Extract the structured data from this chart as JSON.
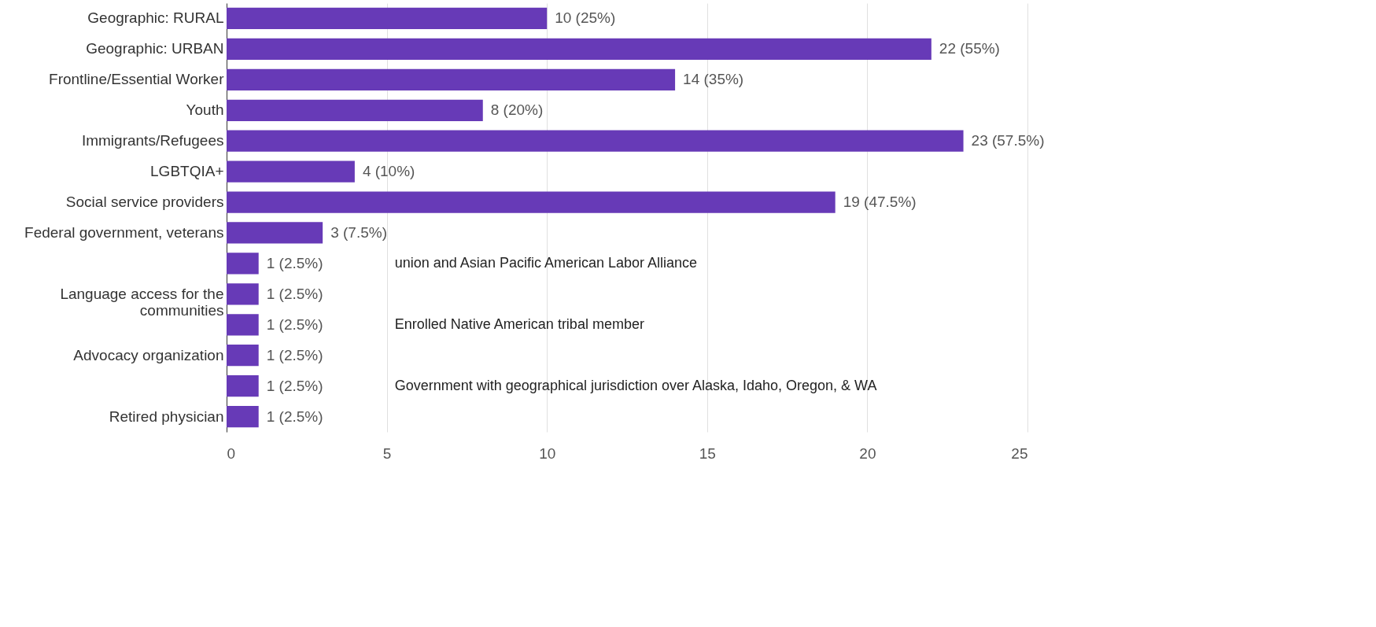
{
  "chart_data": {
    "type": "bar",
    "orientation": "horizontal",
    "categories": [
      "Geographic: RURAL",
      "Geographic: URBAN",
      "Frontline/Essential Worker",
      "Youth",
      "Immigrants/Refugees",
      "LGBTQIA+",
      "Social service providers",
      "Federal government, veterans",
      null,
      "Language access for the\ncommunities",
      null,
      "Advocacy organization",
      null,
      "Retired physician"
    ],
    "values": [
      10,
      22,
      14,
      8,
      23,
      4,
      19,
      3,
      1,
      1,
      1,
      1,
      1,
      1
    ],
    "value_labels": [
      "10 (25%)",
      "22 (55%)",
      "14 (35%)",
      "8 (20%)",
      "23 (57.5%)",
      "4 (10%)",
      "19 (47.5%)",
      "3 (7.5%)",
      "1 (2.5%)",
      "1 (2.5%)",
      "1 (2.5%)",
      "1 (2.5%)",
      "1 (2.5%)",
      "1 (2.5%)"
    ],
    "color": "#673ab7",
    "xlim": [
      0,
      25
    ],
    "xticks": [
      0,
      5,
      10,
      15,
      20,
      25
    ],
    "grid": "x",
    "annotations": [
      "union and Asian Pacific American Labor Alliance",
      "Enrolled Native American tribal member",
      "Government with geographical jurisdiction over Alaska, Idaho, Oregon, & WA"
    ]
  }
}
